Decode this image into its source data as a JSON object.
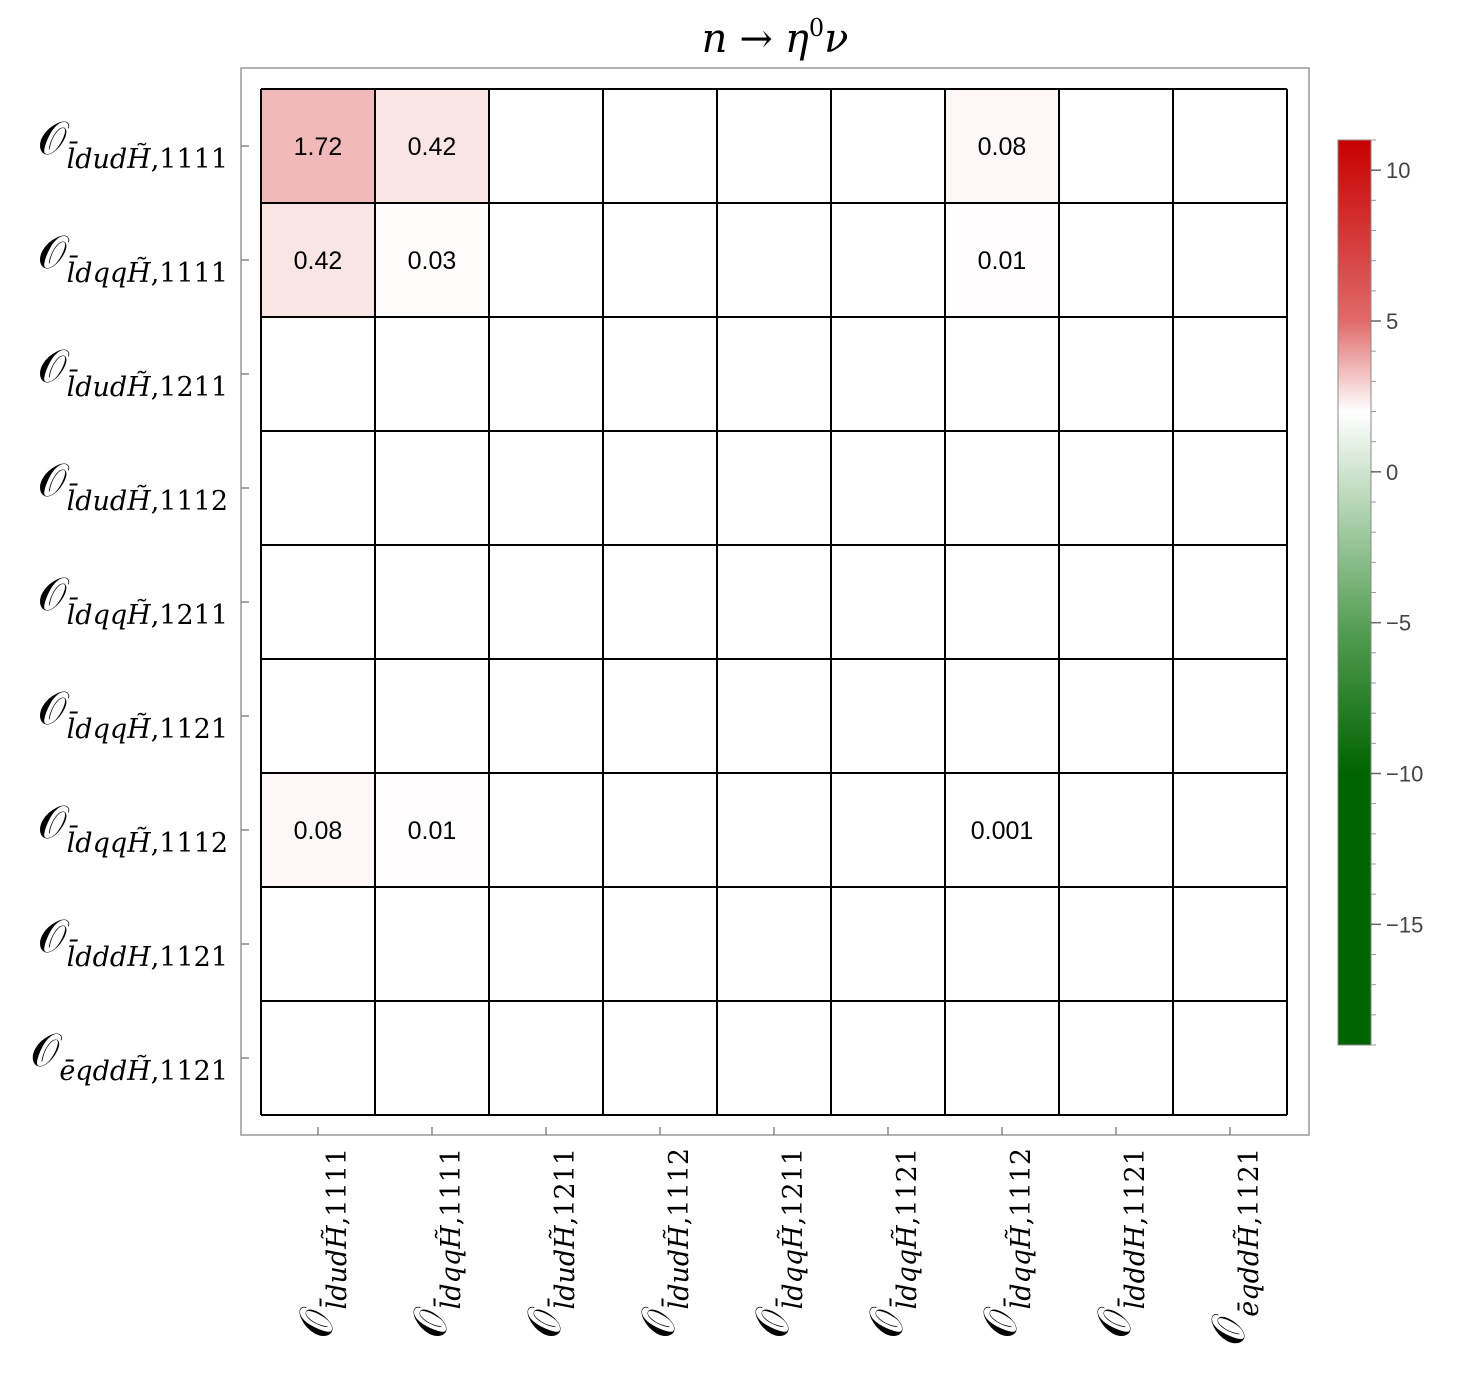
{
  "chart_data": {
    "type": "heatmap",
    "title": "n → η⁰ν",
    "title_parts": {
      "lhs": "n",
      "arrow": "→",
      "particle": "η",
      "superscript": "0",
      "rhs": "ν"
    },
    "row_labels": [
      {
        "symbol": "𝒪",
        "sub": "l̄dudH̃",
        "index": ",1111"
      },
      {
        "symbol": "𝒪",
        "sub": "l̄dqqH̃",
        "index": ",1111"
      },
      {
        "symbol": "𝒪",
        "sub": "l̄dudH̃",
        "index": ",1211"
      },
      {
        "symbol": "𝒪",
        "sub": "l̄dudH̃",
        "index": ",1112"
      },
      {
        "symbol": "𝒪",
        "sub": "l̄dqqH̃",
        "index": ",1211"
      },
      {
        "symbol": "𝒪",
        "sub": "l̄dqqH̃",
        "index": ",1121"
      },
      {
        "symbol": "𝒪",
        "sub": "l̄dqqH̃",
        "index": ",1112"
      },
      {
        "symbol": "𝒪",
        "sub": "l̄dddH",
        "index": ",1121"
      },
      {
        "symbol": "𝒪",
        "sub": "ēqddH̃",
        "index": ",1121"
      }
    ],
    "col_labels": [
      {
        "symbol": "𝒪",
        "sub": "l̄dudH̃",
        "index": ",1111"
      },
      {
        "symbol": "𝒪",
        "sub": "l̄dqqH̃",
        "index": ",1111"
      },
      {
        "symbol": "𝒪",
        "sub": "l̄dudH̃",
        "index": ",1211"
      },
      {
        "symbol": "𝒪",
        "sub": "l̄dudH̃",
        "index": ",1112"
      },
      {
        "symbol": "𝒪",
        "sub": "l̄dqqH̃",
        "index": ",1211"
      },
      {
        "symbol": "𝒪",
        "sub": "l̄dqqH̃",
        "index": ",1121"
      },
      {
        "symbol": "𝒪",
        "sub": "l̄dqqH̃",
        "index": ",1112"
      },
      {
        "symbol": "𝒪",
        "sub": "l̄dddH",
        "index": ",1121"
      },
      {
        "symbol": "𝒪",
        "sub": "ēqddH̃",
        "index": ",1121"
      }
    ],
    "cells": [
      {
        "row": 0,
        "col": 0,
        "value": 1.72,
        "label": "1.72"
      },
      {
        "row": 0,
        "col": 1,
        "value": 0.42,
        "label": "0.42"
      },
      {
        "row": 0,
        "col": 6,
        "value": 0.08,
        "label": "0.08"
      },
      {
        "row": 1,
        "col": 0,
        "value": 0.42,
        "label": "0.42"
      },
      {
        "row": 1,
        "col": 1,
        "value": 0.03,
        "label": "0.03"
      },
      {
        "row": 1,
        "col": 6,
        "value": 0.01,
        "label": "0.01"
      },
      {
        "row": 6,
        "col": 0,
        "value": 0.08,
        "label": "0.08"
      },
      {
        "row": 6,
        "col": 1,
        "value": 0.01,
        "label": "0.01"
      },
      {
        "row": 6,
        "col": 6,
        "value": 0.001,
        "label": "0.001"
      }
    ],
    "colorbar": {
      "range": [
        -19,
        11
      ],
      "ticks": [
        10,
        5,
        0,
        -5,
        -10,
        -15
      ],
      "tick_labels": [
        "10",
        "5",
        "0",
        "−5",
        "−10",
        "−15"
      ],
      "colors": {
        "high": "#cc0000",
        "zero": "#ffffff",
        "low": "#006400"
      }
    },
    "grid": true
  }
}
